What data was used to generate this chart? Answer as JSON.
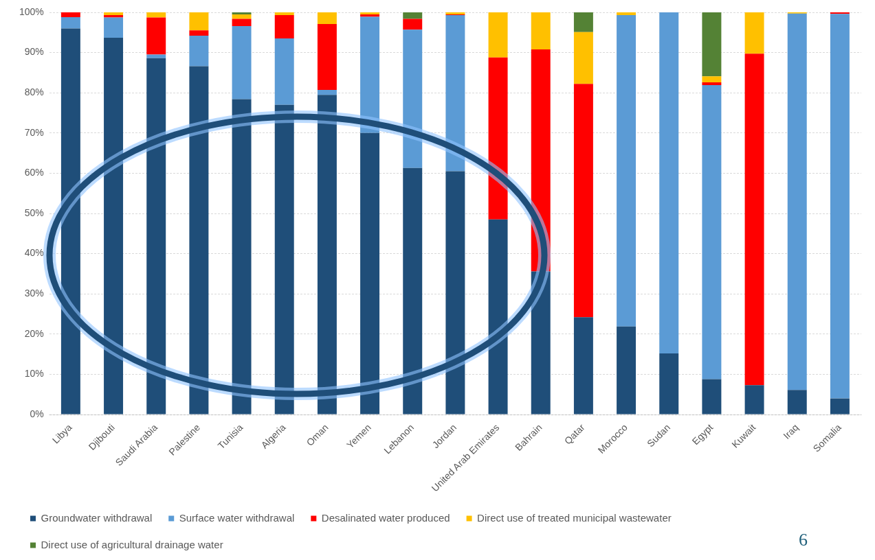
{
  "chart_data": {
    "type": "bar",
    "stacked": true,
    "categories": [
      "Libya",
      "Djibouti",
      "Saudi Arabia",
      "Palestine",
      "Tunisia",
      "Algeria",
      "Oman",
      "Yemen",
      "Lebanon",
      "Jordan",
      "United Arab Emirates",
      "Bahrain",
      "Qatar",
      "Morocco",
      "Sudan",
      "Egypt",
      "Kuwait",
      "Iraq",
      "Somalia"
    ],
    "series": [
      {
        "name": "Groundwater withdrawal",
        "color": "#1f4e79",
        "values": [
          96,
          93.7,
          88.6,
          86.6,
          78.4,
          77,
          79.5,
          70,
          61.3,
          60.5,
          48.5,
          35.6,
          24.2,
          21.9,
          15.2,
          8.8,
          7.3,
          6.1,
          4
        ]
      },
      {
        "name": "Surface water withdrawal",
        "color": "#5b9bd5",
        "values": [
          2.8,
          5,
          0.9,
          7.6,
          18.2,
          16.5,
          1.2,
          28.9,
          34.4,
          38.8,
          0,
          0,
          0,
          77.4,
          84.8,
          73.1,
          0,
          93.6,
          95.6
        ]
      },
      {
        "name": "Desalinated water produced",
        "color": "#ff0000",
        "values": [
          1.2,
          0.6,
          9.2,
          1.3,
          1.8,
          5.8,
          16.4,
          0.6,
          2.7,
          0.2,
          40.3,
          55.2,
          58,
          0,
          0,
          0.7,
          82.4,
          0,
          0.4
        ]
      },
      {
        "name": "Direct use of treated municipal wastewater",
        "color": "#ffc000",
        "values": [
          0,
          0.7,
          1.3,
          4.5,
          1.1,
          0.7,
          2.9,
          0.5,
          0,
          0.5,
          11.2,
          9.2,
          12.9,
          0.7,
          0,
          1.5,
          10.3,
          0.3,
          0
        ]
      },
      {
        "name": "Direct use of agricultural drainage water",
        "color": "#548235",
        "values": [
          0,
          0,
          0,
          0,
          0.5,
          0,
          0,
          0,
          1.6,
          0,
          0,
          0,
          4.9,
          0,
          0,
          15.9,
          0,
          0,
          0
        ]
      }
    ],
    "ylim": [
      0,
      100
    ],
    "yticks": [
      {
        "value": 0,
        "label": "0%"
      },
      {
        "value": 10,
        "label": "10%"
      },
      {
        "value": 20,
        "label": "20%"
      },
      {
        "value": 30,
        "label": "30%"
      },
      {
        "value": 40,
        "label": "40%"
      },
      {
        "value": 50,
        "label": "50%"
      },
      {
        "value": 60,
        "label": "60%"
      },
      {
        "value": 70,
        "label": "70%"
      },
      {
        "value": 80,
        "label": "80%"
      },
      {
        "value": 90,
        "label": "90%"
      },
      {
        "value": 100,
        "label": "100%"
      }
    ],
    "grid": "y",
    "legend": "bottom",
    "annotations": [
      "6"
    ]
  }
}
